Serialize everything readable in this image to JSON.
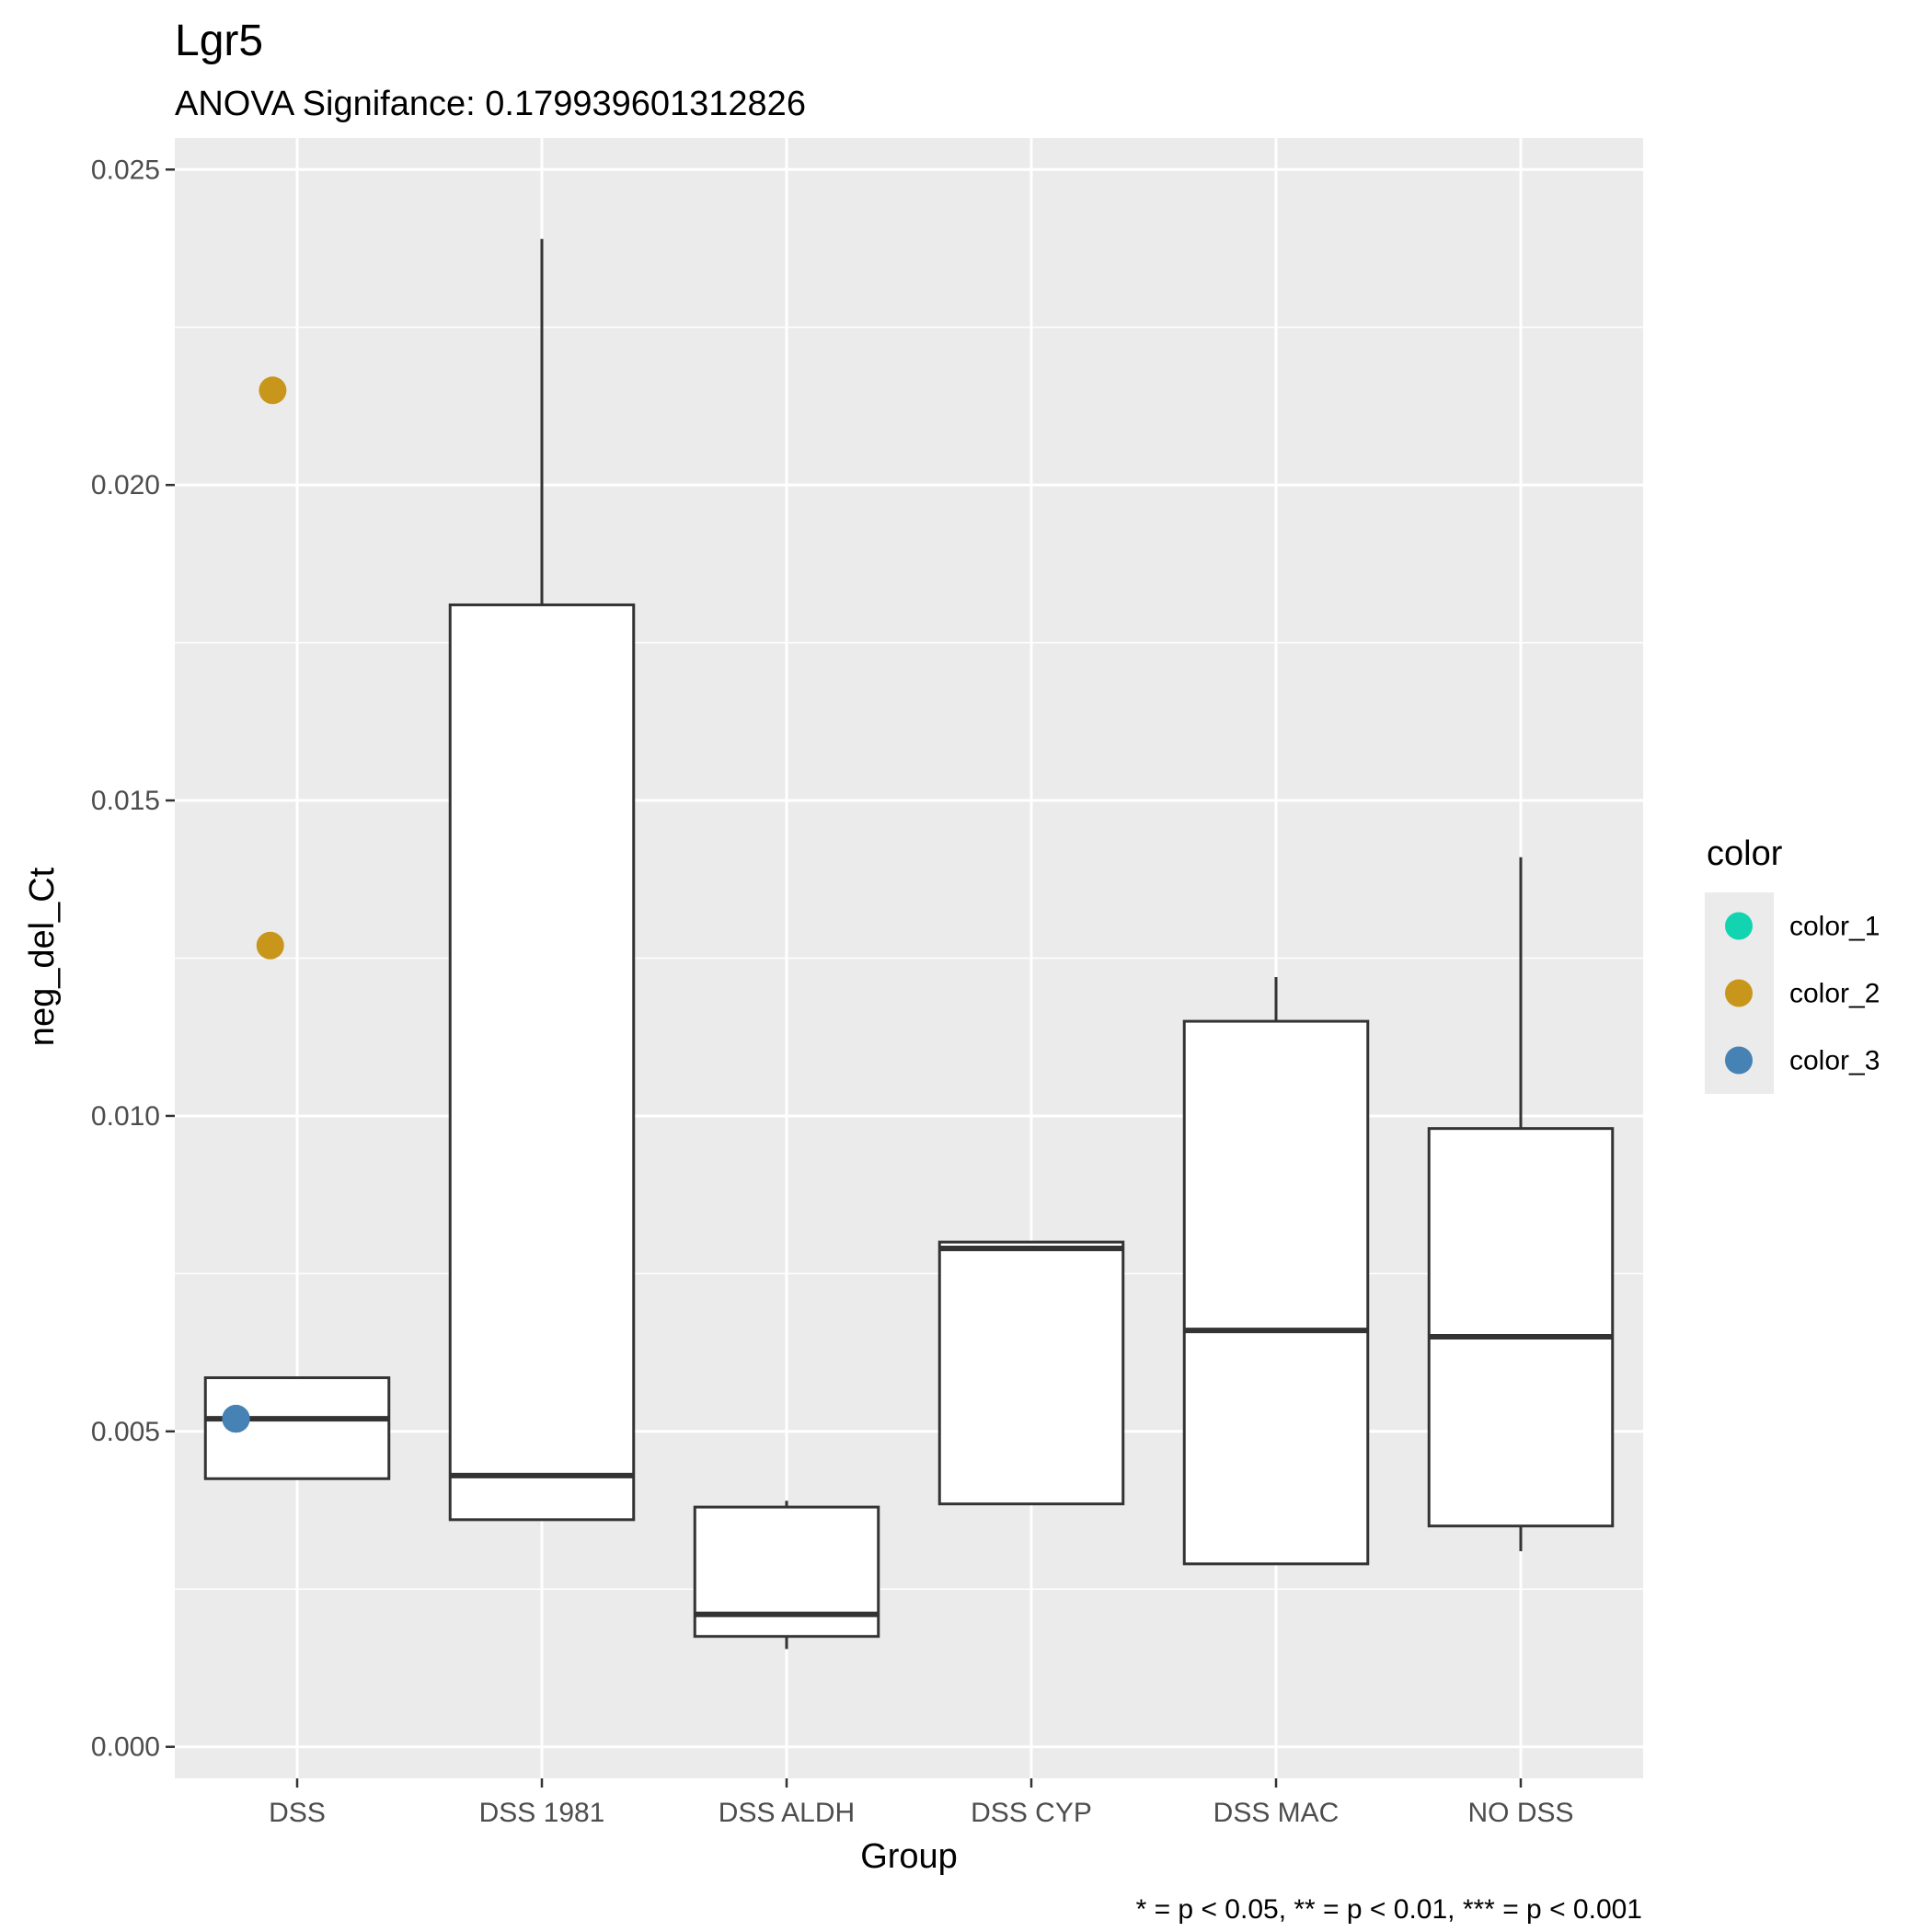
{
  "chart_data": {
    "type": "box",
    "title": "Lgr5",
    "subtitle": "ANOVA Signifance: 0.179939601312826",
    "xlabel": "Group",
    "ylabel": "neg_del_Ct",
    "caption": "* = p < 0.05, ** = p < 0.01, *** = p < 0.001",
    "categories": [
      "DSS",
      "DSS 1981",
      "DSS ALDH",
      "DSS CYP",
      "DSS MAC",
      "NO DSS"
    ],
    "ylim": [
      -0.0005,
      0.0255
    ],
    "yticks": [
      "0.000",
      "0.005",
      "0.010",
      "0.015",
      "0.020",
      "0.025"
    ],
    "grid": true,
    "legend": {
      "title": "color",
      "position": "right",
      "entries": [
        {
          "label": "color_1",
          "color": "#12d4b0"
        },
        {
          "label": "color_2",
          "color": "#c8961a"
        },
        {
          "label": "color_3",
          "color": "#4682b4"
        }
      ]
    },
    "boxes": [
      {
        "category": "DSS",
        "q1": 0.00425,
        "median": 0.0052,
        "q3": 0.00585,
        "whisker_low": 0.00425,
        "whisker_high": 0.00585
      },
      {
        "category": "DSS 1981",
        "q1": 0.0036,
        "median": 0.0043,
        "q3": 0.0181,
        "whisker_low": 0.0036,
        "whisker_high": 0.0239
      },
      {
        "category": "DSS ALDH",
        "q1": 0.00175,
        "median": 0.0021,
        "q3": 0.0038,
        "whisker_low": 0.00155,
        "whisker_high": 0.0039
      },
      {
        "category": "DSS CYP",
        "q1": 0.00385,
        "median": 0.0079,
        "q3": 0.008,
        "whisker_low": 0.00385,
        "whisker_high": 0.008
      },
      {
        "category": "DSS MAC",
        "q1": 0.0029,
        "median": 0.0066,
        "q3": 0.0115,
        "whisker_low": 0.0029,
        "whisker_high": 0.0122
      },
      {
        "category": "NO DSS",
        "q1": 0.0035,
        "median": 0.0065,
        "q3": 0.0098,
        "whisker_low": 0.0031,
        "whisker_high": 0.0141
      }
    ],
    "points": [
      {
        "category": "DSS",
        "jitter": -0.1,
        "y": 0.0215,
        "series": "color_2"
      },
      {
        "category": "DSS",
        "jitter": -0.11,
        "y": 0.0127,
        "series": "color_2"
      },
      {
        "category": "DSS",
        "jitter": -0.25,
        "y": 0.0052,
        "series": "color_3"
      },
      {
        "category": "DSS",
        "jitter": -0.25,
        "y": 0.0052,
        "series": "color_3"
      },
      {
        "category": "DSS",
        "jitter": -0.25,
        "y": 0.0052,
        "series": "color_3"
      },
      {
        "category": "DSS",
        "jitter": -0.25,
        "y": 0.0052,
        "series": "color_3"
      },
      {
        "category": "DSS",
        "jitter": -0.25,
        "y": 0.0052,
        "series": "color_3"
      },
      {
        "category": "DSS",
        "jitter": -0.25,
        "y": 0.0052,
        "series": "color_3"
      }
    ]
  }
}
